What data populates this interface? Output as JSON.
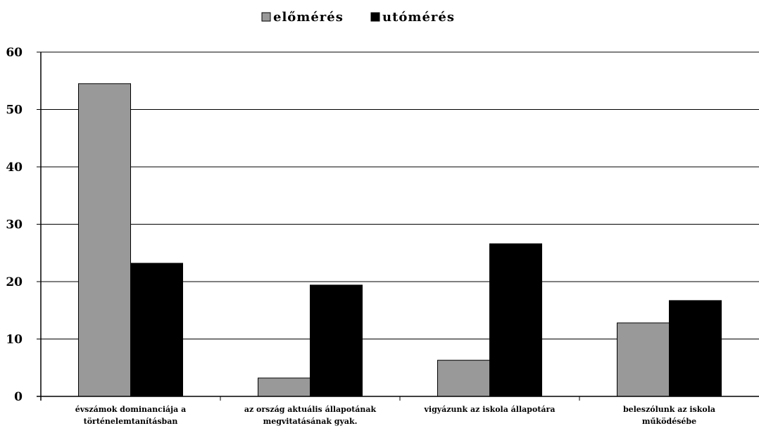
{
  "chart_data": {
    "type": "bar",
    "categories": [
      [
        "évszámok dominanciája a",
        "történelemtanításban"
      ],
      [
        "az ország aktuális állapotának",
        "megvitatásának gyak."
      ],
      [
        "vigyázunk az iskola állapotára"
      ],
      [
        "beleszólunk az iskola",
        "működésébe"
      ]
    ],
    "series": [
      {
        "name": "előmérés",
        "color": "#999999",
        "values": [
          54.5,
          3.2,
          6.3,
          12.8
        ]
      },
      {
        "name": "utómérés",
        "color": "#000000",
        "values": [
          23.2,
          19.4,
          26.6,
          16.7
        ]
      }
    ],
    "ylim": [
      0,
      60
    ],
    "yticks": [
      0,
      10,
      20,
      30,
      40,
      50,
      60
    ],
    "grid": true,
    "legend": "top-center",
    "title": "",
    "xlabel": "",
    "ylabel": ""
  }
}
